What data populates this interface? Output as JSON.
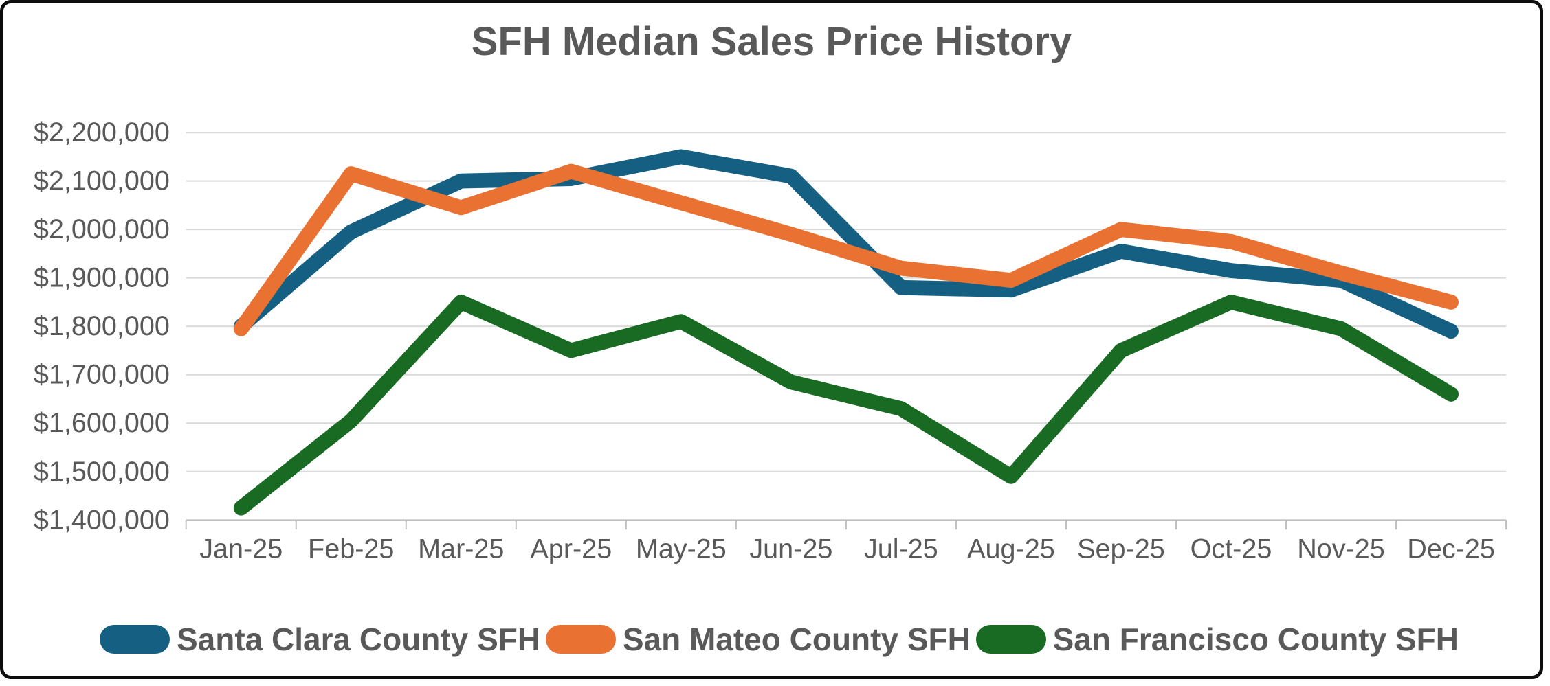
{
  "title": "SFH Median Sales Price History",
  "colors": {
    "santa_clara": "#156082",
    "san_mateo": "#E97132",
    "san_francisco": "#196B24",
    "gridline": "#D9D9D9",
    "axis_line": "#BFBFBF",
    "text": "#595959"
  },
  "chart_data": {
    "type": "line",
    "title": "SFH Median Sales Price History",
    "categories": [
      "Jan-25",
      "Feb-25",
      "Mar-25",
      "Apr-25",
      "May-25",
      "Jun-25",
      "Jul-25",
      "Aug-25",
      "Sep-25",
      "Oct-25",
      "Nov-25",
      "Dec-25"
    ],
    "series": [
      {
        "name": "Santa Clara County SFH",
        "color": "#156082",
        "values": [
          1800000,
          1995000,
          2100000,
          2105000,
          2150000,
          2110000,
          1880000,
          1875000,
          1955000,
          1915000,
          1895000,
          1790000
        ]
      },
      {
        "name": "San Mateo County SFH",
        "color": "#E97132",
        "values": [
          1795000,
          2115000,
          2045000,
          2120000,
          2055000,
          1990000,
          1920000,
          1895000,
          2000000,
          1975000,
          1910000,
          1850000
        ]
      },
      {
        "name": "San Francisco County SFH",
        "color": "#196B24",
        "values": [
          1425000,
          1605000,
          1850000,
          1750000,
          1810000,
          1685000,
          1630000,
          1490000,
          1750000,
          1850000,
          1795000,
          1660000
        ]
      }
    ],
    "ylim": [
      1400000,
      2200000
    ],
    "ytick_step": 100000,
    "y_tick_labels": [
      "$1,400,000",
      "$1,500,000",
      "$1,600,000",
      "$1,700,000",
      "$1,800,000",
      "$1,900,000",
      "$2,000,000",
      "$2,100,000",
      "$2,200,000"
    ],
    "grid": true,
    "legend_position": "bottom",
    "legend_labels": [
      "Santa Clara County SFH",
      "San Mateo County SFH",
      "San Francisco County SFH"
    ]
  }
}
